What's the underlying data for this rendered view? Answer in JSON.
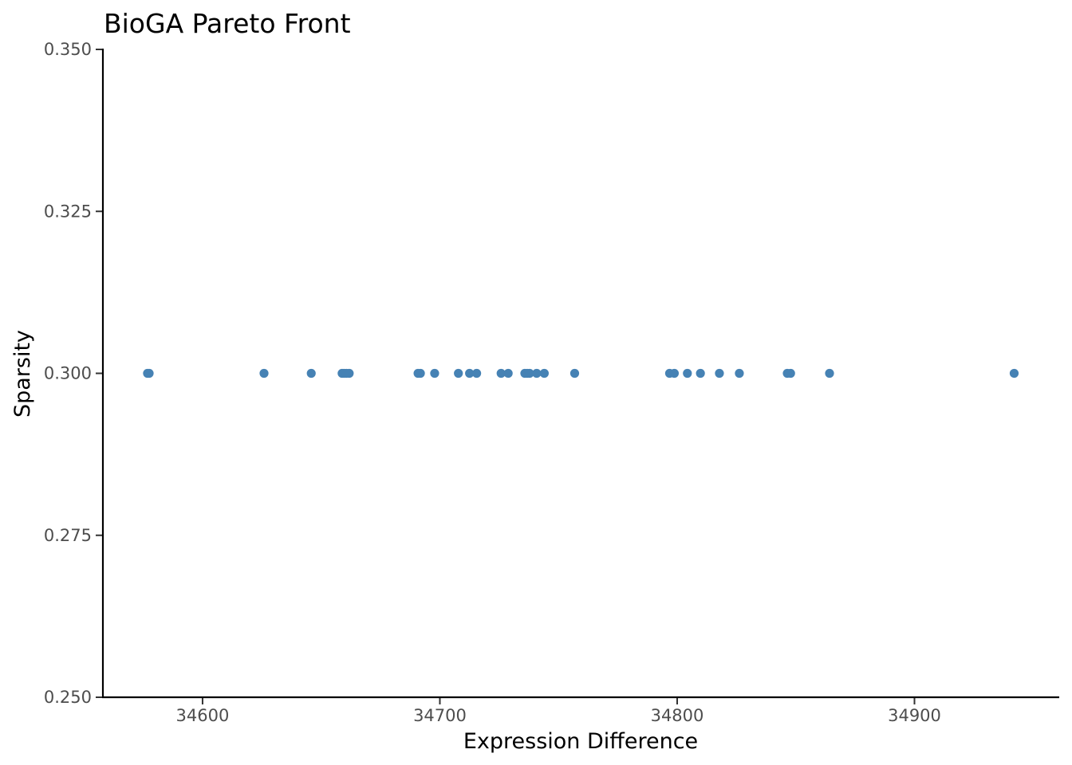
{
  "chart_data": {
    "type": "scatter",
    "title": "BioGA Pareto Front",
    "xlabel": "Expression Difference",
    "ylabel": "Sparsity",
    "xlim": [
      34558,
      34961
    ],
    "ylim": [
      0.25,
      0.35
    ],
    "xticks": [
      34600,
      34700,
      34800,
      34900
    ],
    "yticks": [
      0.25,
      0.275,
      0.3,
      0.325,
      0.35
    ],
    "ytick_labels": [
      "0.250",
      "0.275",
      "0.300",
      "0.325",
      "0.350"
    ],
    "grid": false,
    "point_color": "#4682b4",
    "series": [
      {
        "x": [
          34576.8,
          34577.5,
          34625.9,
          34645.8,
          34658.8,
          34659.6,
          34660.6,
          34661.8,
          34690.8,
          34691.8,
          34697.8,
          34707.8,
          34712.5,
          34715.5,
          34725.8,
          34728.8,
          34735.8,
          34736.8,
          34737.8,
          34740.8,
          34744.0,
          34756.8,
          34796.8,
          34798.8,
          34804.3,
          34809.8,
          34817.8,
          34826.2,
          34846.4,
          34847.8,
          34864.2,
          34942.0
        ],
        "y": [
          0.3,
          0.3,
          0.3,
          0.3,
          0.3,
          0.3,
          0.3,
          0.3,
          0.3,
          0.3,
          0.3,
          0.3,
          0.3,
          0.3,
          0.3,
          0.3,
          0.3,
          0.3,
          0.3,
          0.3,
          0.3,
          0.3,
          0.3,
          0.3,
          0.3,
          0.3,
          0.3,
          0.3,
          0.3,
          0.3,
          0.3,
          0.3
        ]
      }
    ]
  }
}
